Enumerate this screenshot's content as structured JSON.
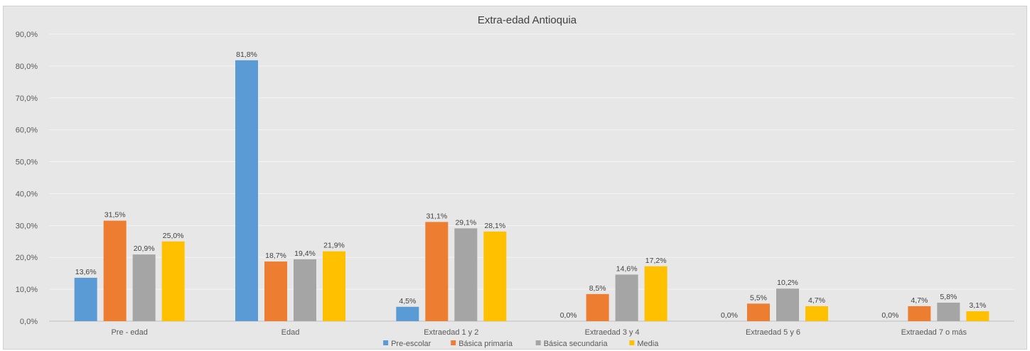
{
  "chart_data": {
    "type": "bar",
    "title": "Extra-edad Antioquia",
    "xlabel": "",
    "ylabel": "",
    "ylim": [
      0,
      90
    ],
    "yticks": [
      "0,0%",
      "10,0%",
      "20,0%",
      "30,0%",
      "40,0%",
      "50,0%",
      "60,0%",
      "70,0%",
      "80,0%",
      "90,0%"
    ],
    "categories": [
      "Pre - edad",
      "Edad",
      "Extraedad 1 y 2",
      "Extraedad 3 y 4",
      "Extraedad 5 y 6",
      "Extraedad 7 o más"
    ],
    "series": [
      {
        "name": "Pre-escolar",
        "color": "#5b9bd5",
        "values": [
          13.6,
          81.8,
          4.5,
          0.0,
          0.0,
          0.0
        ],
        "labels": [
          "13,6%",
          "81,8%",
          "4,5%",
          "0,0%",
          "0,0%",
          "0,0%"
        ]
      },
      {
        "name": "Básica primaria",
        "color": "#ed7d31",
        "values": [
          31.5,
          18.7,
          31.1,
          8.5,
          5.5,
          4.7
        ],
        "labels": [
          "31,5%",
          "18,7%",
          "31,1%",
          "8,5%",
          "5,5%",
          "4,7%"
        ]
      },
      {
        "name": "Básica secundaria",
        "color": "#a5a5a5",
        "values": [
          20.9,
          19.4,
          29.1,
          14.6,
          10.2,
          5.8
        ],
        "labels": [
          "20,9%",
          "19,4%",
          "29,1%",
          "14,6%",
          "10,2%",
          "5,8%"
        ]
      },
      {
        "name": "Media",
        "color": "#ffc000",
        "values": [
          25.0,
          21.9,
          28.1,
          17.2,
          4.7,
          3.1
        ],
        "labels": [
          "25,0%",
          "21,9%",
          "28,1%",
          "17,2%",
          "4,7%",
          "3,1%"
        ]
      }
    ],
    "grid": true,
    "legend_position": "bottom"
  }
}
